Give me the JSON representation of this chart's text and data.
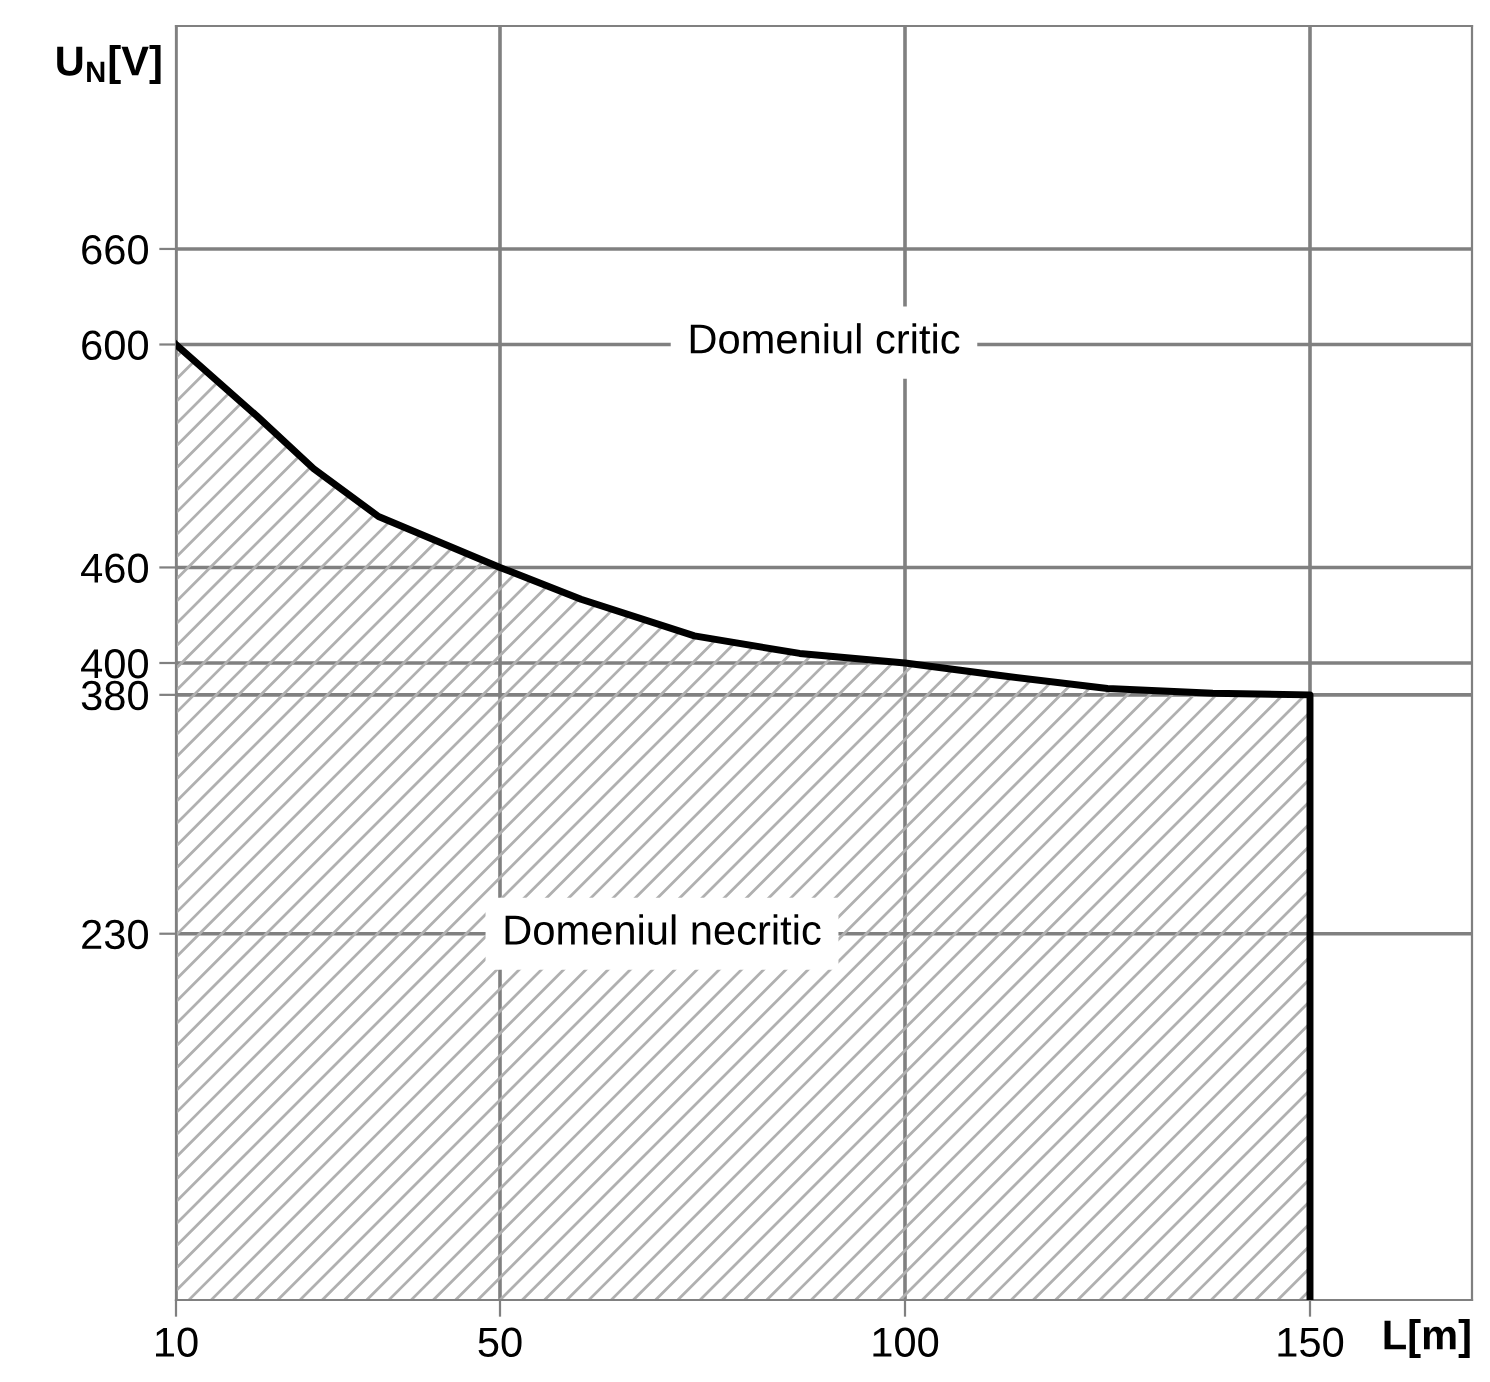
{
  "chart_data": {
    "type": "area",
    "xlabel": "L[m]",
    "ylabel": "U$_{N}$[V]",
    "x": [
      10,
      20,
      27,
      35,
      50,
      60,
      74,
      87,
      100,
      112,
      125,
      138,
      150,
      150
    ],
    "series": [
      {
        "color": "#000000",
        "values": [
          600,
          555,
          522,
          492,
          460,
          440,
          417,
          406,
          400,
          392,
          384,
          381,
          380,
          0
        ]
      }
    ],
    "xlim": [
      10,
      170
    ],
    "ylim": [
      0,
      800
    ],
    "xticks": [
      10,
      50,
      100,
      150
    ],
    "yticks": [
      230,
      380,
      400,
      460,
      600,
      660
    ],
    "grid": true,
    "annotations": [
      "Domeniul critic",
      "Domeniul necritic"
    ]
  }
}
